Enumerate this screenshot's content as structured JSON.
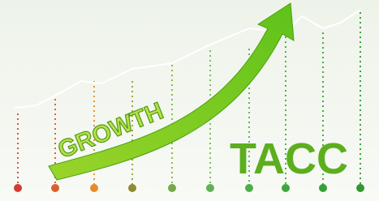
{
  "illustration": {
    "arrow_text": "GROWTH",
    "brand": "TACC"
  }
}
